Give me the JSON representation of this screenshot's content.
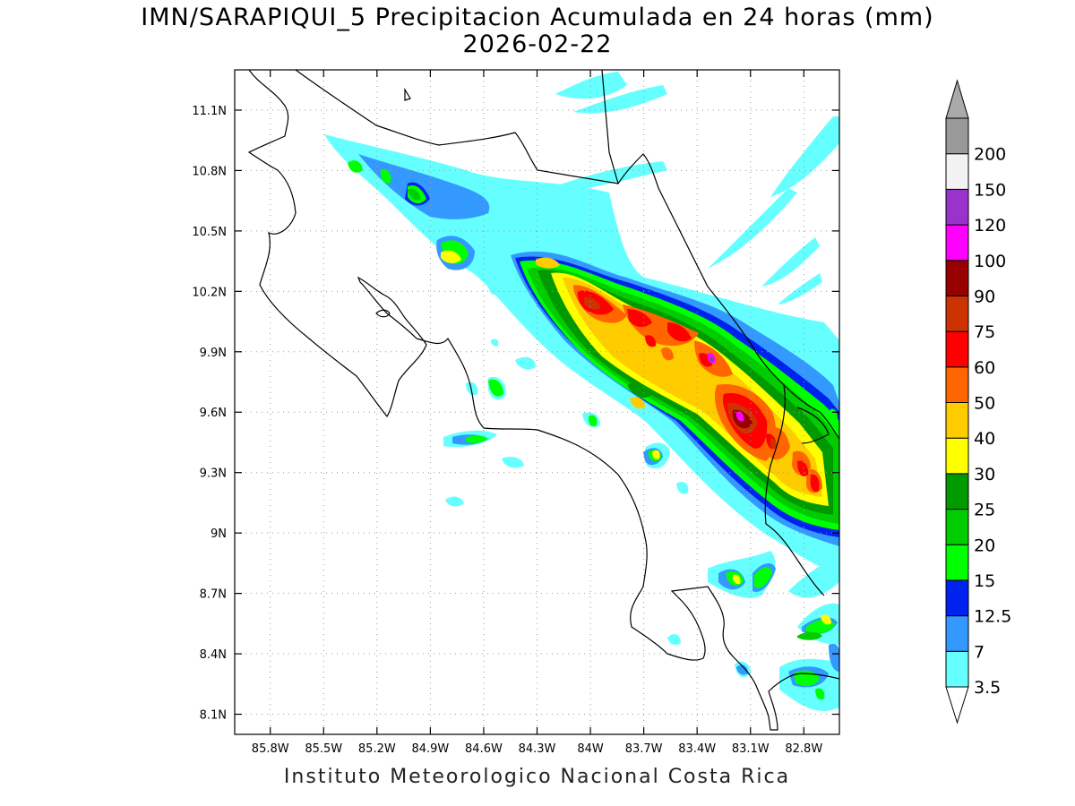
{
  "title": {
    "line1": "IMN/SARAPIQUI_5 Precipitacion Acumulada en 24 horas (mm)",
    "line2": "2026-02-22"
  },
  "footer": "Instituto Meteorologico Nacional Costa Rica",
  "map": {
    "lon_range": [
      -86.0,
      -82.6
    ],
    "lat_range": [
      8.0,
      11.3
    ],
    "x_ticks": [
      {
        "value": -85.8,
        "label": "85.8W"
      },
      {
        "value": -85.5,
        "label": "85.5W"
      },
      {
        "value": -85.2,
        "label": "85.2W"
      },
      {
        "value": -84.9,
        "label": "84.9W"
      },
      {
        "value": -84.6,
        "label": "84.6W"
      },
      {
        "value": -84.3,
        "label": "84.3W"
      },
      {
        "value": -84.0,
        "label": "84W"
      },
      {
        "value": -83.7,
        "label": "83.7W"
      },
      {
        "value": -83.4,
        "label": "83.4W"
      },
      {
        "value": -83.1,
        "label": "83.1W"
      },
      {
        "value": -82.8,
        "label": "82.8W"
      }
    ],
    "y_ticks": [
      {
        "value": 11.1,
        "label": "11.1N"
      },
      {
        "value": 10.8,
        "label": "10.8N"
      },
      {
        "value": 10.5,
        "label": "10.5N"
      },
      {
        "value": 10.2,
        "label": "10.2N"
      },
      {
        "value": 9.9,
        "label": "9.9N"
      },
      {
        "value": 9.6,
        "label": "9.6N"
      },
      {
        "value": 9.3,
        "label": "9.3N"
      },
      {
        "value": 9.0,
        "label": "9N"
      },
      {
        "value": 8.7,
        "label": "8.7N"
      },
      {
        "value": 8.4,
        "label": "8.4N"
      },
      {
        "value": 8.1,
        "label": "8.1N"
      }
    ],
    "grid": true
  },
  "legend": {
    "levels": [
      {
        "label": "3.5",
        "color": "#66ffff"
      },
      {
        "label": "7",
        "color": "#3399ff"
      },
      {
        "label": "12.5",
        "color": "#0022ee"
      },
      {
        "label": "15",
        "color": "#00ff00"
      },
      {
        "label": "20",
        "color": "#00cc00"
      },
      {
        "label": "25",
        "color": "#009900"
      },
      {
        "label": "30",
        "color": "#ffff00"
      },
      {
        "label": "40",
        "color": "#ffcc00"
      },
      {
        "label": "50",
        "color": "#ff6600"
      },
      {
        "label": "60",
        "color": "#ff0000"
      },
      {
        "label": "75",
        "color": "#cc3300"
      },
      {
        "label": "90",
        "color": "#990000"
      },
      {
        "label": "100",
        "color": "#ff00ff"
      },
      {
        "label": "120",
        "color": "#9933cc"
      },
      {
        "label": "150",
        "color": "#f2f2f2"
      },
      {
        "label": "200",
        "color": "#999999"
      }
    ]
  }
}
